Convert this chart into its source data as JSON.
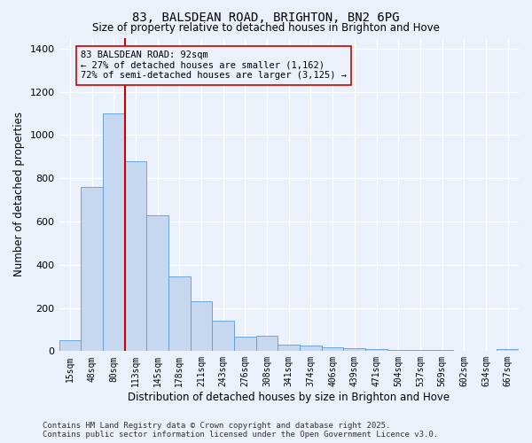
{
  "title1": "83, BALSDEAN ROAD, BRIGHTON, BN2 6PG",
  "title2": "Size of property relative to detached houses in Brighton and Hove",
  "xlabel": "Distribution of detached houses by size in Brighton and Hove",
  "ylabel": "Number of detached properties",
  "categories": [
    "15sqm",
    "48sqm",
    "80sqm",
    "113sqm",
    "145sqm",
    "178sqm",
    "211sqm",
    "243sqm",
    "276sqm",
    "308sqm",
    "341sqm",
    "374sqm",
    "406sqm",
    "439sqm",
    "471sqm",
    "504sqm",
    "537sqm",
    "569sqm",
    "602sqm",
    "634sqm",
    "667sqm"
  ],
  "bar_values": [
    50,
    760,
    1100,
    880,
    630,
    345,
    230,
    140,
    65,
    70,
    30,
    28,
    18,
    12,
    8,
    7,
    5,
    4,
    3,
    2,
    8
  ],
  "bar_color": "#c5d8f0",
  "bar_edge_color": "#5b9bd5",
  "vline_color": "#cc0000",
  "annotation_box_edge": "#cc0000",
  "background_color": "#eaf1fb",
  "grid_color": "#d0d8e8",
  "ylim": [
    0,
    1450
  ],
  "yticks": [
    0,
    200,
    400,
    600,
    800,
    1000,
    1200,
    1400
  ],
  "ann_line1": "83 BALSDEAN ROAD: 92sqm",
  "ann_line2": "← 27% of detached houses are smaller (1,162)",
  "ann_line3": "72% of semi-detached houses are larger (3,125) →",
  "footer1": "Contains HM Land Registry data © Crown copyright and database right 2025.",
  "footer2": "Contains public sector information licensed under the Open Government Licence v3.0."
}
